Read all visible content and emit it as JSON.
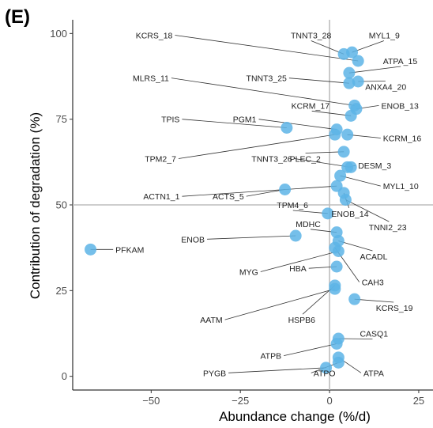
{
  "panel_label": "(E)",
  "chart_data": {
    "type": "scatter",
    "title": "",
    "xlabel": "Abundance change (%/d)",
    "ylabel": "Contribution of degradation (%)",
    "xlim": [
      -72,
      29
    ],
    "ylim": [
      -4,
      104
    ],
    "xticks": [
      -50,
      -25,
      0,
      25
    ],
    "yticks": [
      0,
      25,
      50,
      75,
      100
    ],
    "reference_lines": {
      "x": 0,
      "y": 50
    },
    "grid": false,
    "point_color": "#5DB4E6",
    "points": [
      {
        "name": "MYL1_9",
        "x": 6.3,
        "y": 94.5
      },
      {
        "name": "TNNT3_28",
        "x": 4.0,
        "y": 94.0
      },
      {
        "name": "KCRS_18",
        "x": 8.0,
        "y": 92.0
      },
      {
        "name": "ATPA_15",
        "x": 5.5,
        "y": 88.5
      },
      {
        "name": "ANXA4_20",
        "x": 8.0,
        "y": 86.0
      },
      {
        "name": "TNNT3_25",
        "x": 5.5,
        "y": 85.5
      },
      {
        "name": "MLRS_11",
        "x": 7.0,
        "y": 79.0
      },
      {
        "name": "ENOB_13",
        "x": 7.5,
        "y": 78.0
      },
      {
        "name": "KCRM_17",
        "x": 6.0,
        "y": 76.0
      },
      {
        "name": "TPIS",
        "x": -12.0,
        "y": 72.5
      },
      {
        "name": "PGM1",
        "x": 2.0,
        "y": 72.0
      },
      {
        "name": "KCRM_16",
        "x": 5.0,
        "y": 70.5
      },
      {
        "name": "TPM2_7",
        "x": 1.5,
        "y": 70.5
      },
      {
        "name": "PLEC_2",
        "x": 4.0,
        "y": 65.5
      },
      {
        "name": "DESM_3",
        "x": 5.0,
        "y": 61.0
      },
      {
        "name": "TNNT3_26",
        "x": 6.0,
        "y": 61.0
      },
      {
        "name": "MYL1_10",
        "x": 3.0,
        "y": 58.5
      },
      {
        "name": "ACTN1_1",
        "x": 2.0,
        "y": 55.5
      },
      {
        "name": "ACTS_5",
        "x": -12.5,
        "y": 54.5
      },
      {
        "name": "ENOB_14",
        "x": 4.0,
        "y": 53.5
      },
      {
        "name": "TNNI2_23",
        "x": 4.5,
        "y": 51.5
      },
      {
        "name": "TPM4_6",
        "x": -0.5,
        "y": 47.5
      },
      {
        "name": "MDHC",
        "x": 2.0,
        "y": 42.0
      },
      {
        "name": "ENOB",
        "x": -9.5,
        "y": 41.0
      },
      {
        "name": "ACADL",
        "x": 2.5,
        "y": 39.5
      },
      {
        "name": "PFKAM",
        "x": -67.0,
        "y": 37.0
      },
      {
        "name": "CAH3",
        "x": 1.5,
        "y": 37.5
      },
      {
        "name": "MYG",
        "x": 2.5,
        "y": 36.5
      },
      {
        "name": "HBA",
        "x": 2.0,
        "y": 32.0
      },
      {
        "name": "HSPB6",
        "x": 1.5,
        "y": 26.5
      },
      {
        "name": "AATM",
        "x": 1.5,
        "y": 25.5
      },
      {
        "name": "KCRS_19",
        "x": 7.0,
        "y": 22.5
      },
      {
        "name": "CASQ1",
        "x": 2.5,
        "y": 11.0
      },
      {
        "name": "ATPB",
        "x": 2.0,
        "y": 9.5
      },
      {
        "name": "ATPA",
        "x": 2.5,
        "y": 5.5
      },
      {
        "name": "ATPO",
        "x": 2.5,
        "y": 4.0
      },
      {
        "name": "PYGB",
        "x": -1.0,
        "y": 2.5
      }
    ],
    "labels": [
      {
        "text": "KCRS_18",
        "point": "KCRS_18",
        "lx": -44,
        "ly": 99.5,
        "anchor": "end"
      },
      {
        "text": "TNNT3_28",
        "point": "TNNT3_28",
        "lx": 0.5,
        "ly": 99.5,
        "anchor": "end"
      },
      {
        "text": "MYL1_9",
        "point": "MYL1_9",
        "lx": 11,
        "ly": 99.5,
        "anchor": "start"
      },
      {
        "text": "ATPA_15",
        "point": "ATPA_15",
        "lx": 15,
        "ly": 92.0,
        "anchor": "start"
      },
      {
        "text": "MLRS_11",
        "point": "MLRS_11",
        "lx": -45,
        "ly": 87.0,
        "anchor": "end"
      },
      {
        "text": "TNNT3_25",
        "point": "TNNT3_25",
        "lx": -12,
        "ly": 87.0,
        "anchor": "end"
      },
      {
        "text": "ANXA4_20",
        "point": "ANXA4_20",
        "lx": 10,
        "ly": 84.5,
        "anchor": "start"
      },
      {
        "text": "KCRM_17",
        "point": "KCRM_17",
        "lx": 0,
        "ly": 79.0,
        "anchor": "end"
      },
      {
        "text": "ENOB_13",
        "point": "ENOB_13",
        "lx": 14.5,
        "ly": 79.0,
        "anchor": "start"
      },
      {
        "text": "TPIS",
        "point": "TPIS",
        "lx": -42,
        "ly": 75.0,
        "anchor": "end"
      },
      {
        "text": "PGM1",
        "point": "PGM1",
        "lx": -20.5,
        "ly": 75.0,
        "anchor": "end"
      },
      {
        "text": "KCRM_16",
        "point": "KCRM_16",
        "lx": 15,
        "ly": 69.5,
        "anchor": "start"
      },
      {
        "text": "TPM2_7",
        "point": "TPM2_7",
        "lx": -43,
        "ly": 63.5,
        "anchor": "end"
      },
      {
        "text": "TNNT3_26",
        "point": "TNNT3_26",
        "lx": -10.5,
        "ly": 63.5,
        "anchor": "end"
      },
      {
        "text": "PLEC_2",
        "point": "PLEC_2",
        "lx": -2.5,
        "ly": 63.5,
        "anchor": "end"
      },
      {
        "text": "DESM_3",
        "point": "DESM_3",
        "lx": 8,
        "ly": 61.5,
        "anchor": "start"
      },
      {
        "text": "MYL1_10",
        "point": "MYL1_10",
        "lx": 15,
        "ly": 55.5,
        "anchor": "start"
      },
      {
        "text": "ACTN1_1",
        "point": "ACTN1_1",
        "lx": -42,
        "ly": 52.5,
        "anchor": "end"
      },
      {
        "text": "ACTS_5",
        "point": "ACTS_5",
        "lx": -24,
        "ly": 52.5,
        "anchor": "end"
      },
      {
        "text": "TPM4_6",
        "point": "TPM4_6",
        "lx": -6,
        "ly": 50.0,
        "anchor": "end"
      },
      {
        "text": "ENOB_14",
        "point": "ENOB_14",
        "lx": 0.5,
        "ly": 47.5,
        "anchor": "start"
      },
      {
        "text": "TNNI2_23",
        "point": "TNNI2_23",
        "lx": 11,
        "ly": 43.5,
        "anchor": "start"
      },
      {
        "text": "MDHC",
        "point": "MDHC",
        "lx": -2.5,
        "ly": 44.5,
        "anchor": "end"
      },
      {
        "text": "ENOB",
        "point": "ENOB",
        "lx": -35,
        "ly": 40.0,
        "anchor": "end"
      },
      {
        "text": "PFKAM",
        "point": "PFKAM",
        "lx": -60,
        "ly": 37.0,
        "anchor": "start"
      },
      {
        "text": "ACADL",
        "point": "ACADL",
        "lx": 8.5,
        "ly": 35.0,
        "anchor": "start"
      },
      {
        "text": "MYG",
        "point": "MYG",
        "lx": -20,
        "ly": 30.5,
        "anchor": "end"
      },
      {
        "text": "HBA",
        "point": "HBA",
        "lx": -6.5,
        "ly": 31.5,
        "anchor": "end"
      },
      {
        "text": "CAH3",
        "point": "CAH3",
        "lx": 9,
        "ly": 27.5,
        "anchor": "start"
      },
      {
        "text": "AATM",
        "point": "AATM",
        "lx": -30,
        "ly": 16.5,
        "anchor": "end"
      },
      {
        "text": "HSPB6",
        "point": "HSPB6",
        "lx": -4,
        "ly": 16.5,
        "anchor": "end"
      },
      {
        "text": "KCRS_19",
        "point": "KCRS_19",
        "lx": 13,
        "ly": 20.0,
        "anchor": "start"
      },
      {
        "text": "CASQ1",
        "point": "CASQ1",
        "lx": 8.5,
        "ly": 12.5,
        "anchor": "start"
      },
      {
        "text": "ATPB",
        "point": "ATPB",
        "lx": -13.5,
        "ly": 6.0,
        "anchor": "end"
      },
      {
        "text": "PYGB",
        "point": "PYGB",
        "lx": -29,
        "ly": 1.0,
        "anchor": "end"
      },
      {
        "text": "ATPO",
        "point": "ATPO",
        "lx": -4.5,
        "ly": 1.0,
        "anchor": "start"
      },
      {
        "text": "ATPA",
        "point": "ATPA",
        "lx": 9.5,
        "ly": 1.0,
        "anchor": "start"
      }
    ]
  }
}
